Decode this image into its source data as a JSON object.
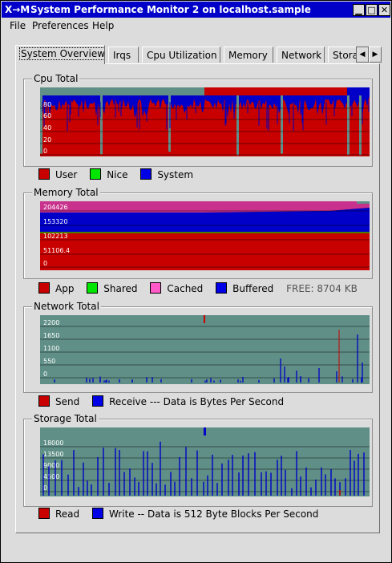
{
  "window": {
    "title": "System Performance Monitor 2  on localhost.sample",
    "app_icon": "X-app-icon",
    "buttons": [
      "minimize",
      "maximize",
      "close"
    ]
  },
  "menu": [
    "File",
    "Preferences",
    "Help"
  ],
  "tabs": [
    "System Overview",
    "Irqs",
    "Cpu Utilization",
    "Memory",
    "Network",
    "Storage"
  ],
  "active_tab": "System Overview",
  "cpu": {
    "title": "Cpu Total",
    "yticks": [
      "80",
      "60",
      "40",
      "20",
      "0"
    ],
    "legend": [
      "User",
      "Nice",
      "System"
    ],
    "colors": {
      "User": "#c80000",
      "Nice": "#00c800",
      "System": "#0000c8"
    }
  },
  "memory": {
    "title": "Memory Total",
    "yticks": [
      "204426",
      "153320",
      "102213",
      "51106.4",
      "0"
    ],
    "legend": [
      "App",
      "Shared",
      "Cached",
      "Buffered"
    ],
    "colors": {
      "App": "#c80000",
      "Shared": "#00c800",
      "Cached": "#c8328c",
      "Buffered": "#0000c8"
    },
    "free": "FREE: 8704 KB"
  },
  "network": {
    "title": "Network Total",
    "yticks": [
      "2200",
      "1650",
      "1100",
      "550",
      "0"
    ],
    "legend": [
      "Send"
    ],
    "legend2": "Receive --- Data is Bytes Per Second",
    "colors": {
      "Send": "#c80000",
      "Receive": "#0000c8"
    }
  },
  "storage": {
    "title": "Storage Total",
    "yticks": [
      "18000",
      "13500",
      "9000",
      "4500",
      "0"
    ],
    "legend": [
      "Read"
    ],
    "legend2": "Write -- Data is 512 Byte Blocks Per Second",
    "colors": {
      "Read": "#c80000",
      "Write": "#0000c8"
    }
  },
  "chart_data": [
    {
      "type": "area",
      "title": "Cpu Total",
      "ylim": [
        0,
        100
      ]
    },
    {
      "type": "area",
      "title": "Memory Total"
    },
    {
      "type": "bar",
      "title": "Network Total"
    },
    {
      "type": "bar",
      "title": "Storage Total"
    }
  ]
}
